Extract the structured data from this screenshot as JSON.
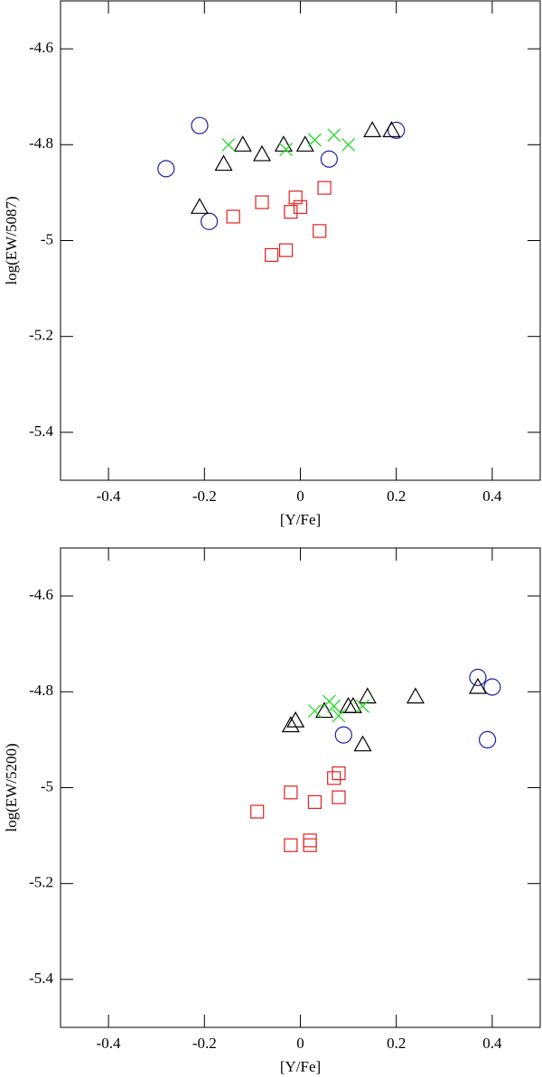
{
  "chart_data": [
    {
      "type": "scatter",
      "xlabel": "[Y/Fe]",
      "ylabel": "log(EW/5087)",
      "xlim": [
        -0.5,
        0.5
      ],
      "ylim": [
        -5.5,
        -4.5
      ],
      "xticks": [
        -0.4,
        -0.2,
        0,
        0.2,
        0.4
      ],
      "yticks": [
        -4.6,
        -4.8,
        -5,
        -5.2,
        -5.4
      ],
      "series": [
        {
          "marker": "circle",
          "color": "#1f1fa8",
          "x": [
            -0.28,
            -0.21,
            -0.19,
            0.06,
            0.2
          ],
          "values": [
            -4.85,
            -4.76,
            -4.96,
            -4.83,
            -4.77
          ]
        },
        {
          "marker": "triangle",
          "color": "#000000",
          "x": [
            -0.21,
            -0.16,
            -0.12,
            -0.08,
            -0.035,
            0.01,
            0.15,
            0.19
          ],
          "values": [
            -4.93,
            -4.84,
            -4.8,
            -4.82,
            -4.8,
            -4.8,
            -4.77,
            -4.77
          ]
        },
        {
          "marker": "square",
          "color": "#e02020",
          "x": [
            -0.14,
            -0.08,
            -0.06,
            -0.03,
            -0.02,
            -0.01,
            0,
            0.04,
            0.05
          ],
          "values": [
            -4.95,
            -4.92,
            -5.03,
            -5.02,
            -4.94,
            -4.91,
            -4.93,
            -4.98,
            -4.89
          ]
        },
        {
          "marker": "cross",
          "color": "#22dd22",
          "x": [
            -0.15,
            -0.03,
            0.03,
            0.07,
            0.1
          ],
          "values": [
            -4.8,
            -4.81,
            -4.79,
            -4.78,
            -4.8
          ]
        }
      ]
    },
    {
      "type": "scatter",
      "xlabel": "[Y/Fe]",
      "ylabel": "log(EW/5200)",
      "xlim": [
        -0.5,
        0.5
      ],
      "ylim": [
        -5.5,
        -4.5
      ],
      "xticks": [
        -0.4,
        -0.2,
        0,
        0.2,
        0.4
      ],
      "yticks": [
        -4.6,
        -4.8,
        -5,
        -5.2,
        -5.4
      ],
      "series": [
        {
          "marker": "circle",
          "color": "#1f1fa8",
          "x": [
            0.09,
            0.37,
            0.4,
            0.39
          ],
          "values": [
            -4.89,
            -4.77,
            -4.79,
            -4.9
          ]
        },
        {
          "marker": "triangle",
          "color": "#000000",
          "x": [
            -0.02,
            -0.01,
            0.05,
            0.1,
            0.11,
            0.14,
            0.13,
            0.24,
            0.37
          ],
          "values": [
            -4.87,
            -4.86,
            -4.84,
            -4.83,
            -4.83,
            -4.81,
            -4.91,
            -4.81,
            -4.79
          ]
        },
        {
          "marker": "square",
          "color": "#e02020",
          "x": [
            -0.09,
            -0.02,
            -0.02,
            0.02,
            0.02,
            0.03,
            0.07,
            0.08,
            0.08
          ],
          "values": [
            -5.05,
            -5.01,
            -5.12,
            -5.12,
            -5.11,
            -5.03,
            -4.98,
            -4.97,
            -5.02
          ]
        },
        {
          "marker": "cross",
          "color": "#22dd22",
          "x": [
            0.03,
            0.06,
            0.07,
            0.08,
            0.13
          ],
          "values": [
            -4.84,
            -4.82,
            -4.83,
            -4.85,
            -4.83
          ]
        }
      ]
    }
  ]
}
